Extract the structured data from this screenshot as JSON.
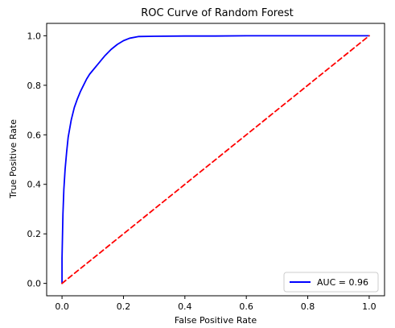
{
  "chart_data": {
    "type": "line",
    "title": "ROC Curve of Random Forest",
    "xlabel": "False Positive Rate",
    "ylabel": "True Positive Rate",
    "xlim": [
      -0.05,
      1.05
    ],
    "ylim": [
      -0.05,
      1.05
    ],
    "x_ticks": [
      "0.0",
      "0.2",
      "0.4",
      "0.6",
      "0.8",
      "1.0"
    ],
    "y_ticks": [
      "0.0",
      "0.2",
      "0.4",
      "0.6",
      "0.8",
      "1.0"
    ],
    "grid": false,
    "legend_position": "lower-right",
    "series": [
      {
        "name": "AUC = 0.96",
        "color": "#0000ff",
        "style": "solid",
        "x": [
          0.0,
          0.0,
          0.003,
          0.006,
          0.01,
          0.015,
          0.02,
          0.03,
          0.04,
          0.05,
          0.06,
          0.07,
          0.08,
          0.09,
          0.1,
          0.12,
          0.14,
          0.16,
          0.18,
          0.2,
          0.22,
          0.25,
          0.3,
          0.4,
          0.5,
          0.6,
          0.7,
          0.8,
          0.9,
          1.0
        ],
        "y": [
          0.0,
          0.1,
          0.28,
          0.38,
          0.46,
          0.53,
          0.59,
          0.66,
          0.71,
          0.745,
          0.775,
          0.8,
          0.825,
          0.845,
          0.86,
          0.89,
          0.92,
          0.945,
          0.965,
          0.98,
          0.99,
          0.997,
          0.998,
          0.999,
          0.999,
          1.0,
          1.0,
          1.0,
          1.0,
          1.0
        ]
      },
      {
        "name": "",
        "color": "#ff0000",
        "style": "dashed",
        "x": [
          0.0,
          1.0
        ],
        "y": [
          0.0,
          1.0
        ]
      }
    ]
  }
}
